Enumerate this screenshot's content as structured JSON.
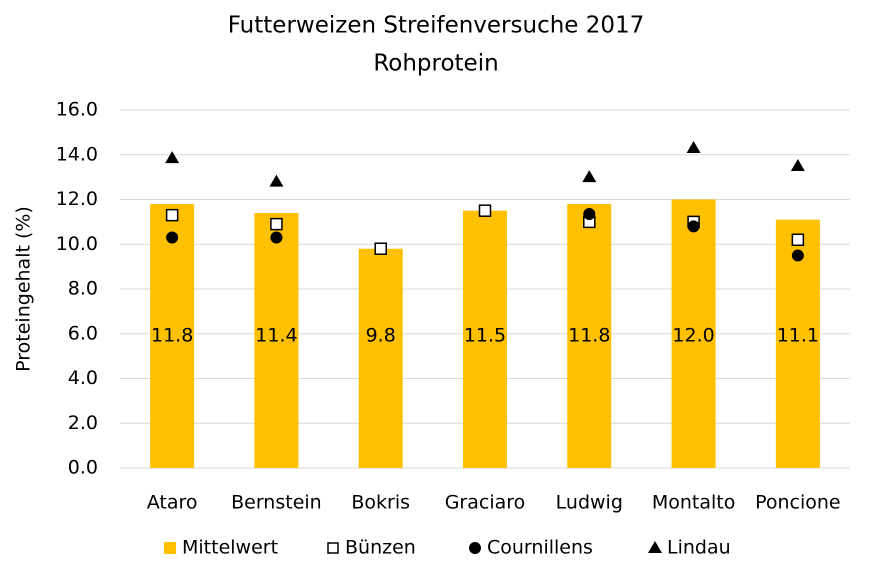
{
  "chart_data": {
    "type": "bar",
    "title": "Futterweizen  Streifenversuche 2017",
    "subtitle": "Rohprotein",
    "y_label": "Proteingehalt (%)",
    "categories": [
      "Ataro",
      "Bernstein",
      "Bokris",
      "Graciaro",
      "Ludwig",
      "Montalto",
      "Poncione"
    ],
    "series": [
      {
        "name": "Mittelwert",
        "marker": "bar",
        "color": "#FFC000",
        "values": [
          11.8,
          11.4,
          9.8,
          11.5,
          11.8,
          12.0,
          11.1
        ],
        "value_labels": [
          "11.8",
          "11.4",
          "9.8",
          "11.5",
          "11.8",
          "12.0",
          "11.1"
        ]
      },
      {
        "name": "Bünzen",
        "marker": "square",
        "color": "#000000",
        "values": [
          11.3,
          10.9,
          9.8,
          11.5,
          11.0,
          11.0,
          10.2
        ]
      },
      {
        "name": "Cournillens",
        "marker": "circle",
        "color": "#000000",
        "values": [
          10.3,
          10.3,
          null,
          null,
          11.35,
          10.8,
          9.5
        ]
      },
      {
        "name": "Lindau",
        "marker": "triangle",
        "color": "#000000",
        "values": [
          13.85,
          12.8,
          null,
          null,
          13.0,
          14.3,
          13.5
        ]
      }
    ],
    "ylim": [
      0,
      16
    ],
    "yticks": [
      {
        "value": 0,
        "label": "0.0"
      },
      {
        "value": 2,
        "label": "2.0"
      },
      {
        "value": 4,
        "label": "4.0"
      },
      {
        "value": 6,
        "label": "6.0"
      },
      {
        "value": 8,
        "label": "8.0"
      },
      {
        "value": 10,
        "label": "10.0"
      },
      {
        "value": 12,
        "label": "12.0"
      },
      {
        "value": 14,
        "label": "14.0"
      },
      {
        "value": 16,
        "label": "16.0"
      }
    ],
    "grid": true,
    "legend": "bottom"
  }
}
